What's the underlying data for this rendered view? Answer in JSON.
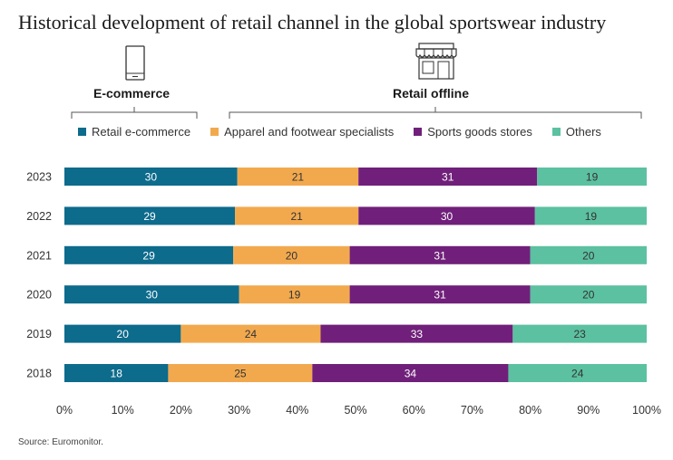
{
  "title": "Historical development of retail channel in the global sportswear industry",
  "groups": {
    "ecommerce": {
      "label": "E-commerce",
      "icon": "smartphone-icon"
    },
    "offline": {
      "label": "Retail offline",
      "icon": "storefront-icon"
    }
  },
  "source": "Source: Euromonitor.",
  "colors": {
    "retail_ecommerce": "#0d6b8c",
    "apparel_footwear": "#f2a94e",
    "sports_goods": "#70207a",
    "others": "#5cc1a0"
  },
  "chart_data": {
    "type": "bar",
    "orientation": "horizontal",
    "stacked": true,
    "percent_stacked": true,
    "title": "Historical development of retail channel in the global sportswear industry",
    "categories": [
      "2023",
      "2022",
      "2021",
      "2020",
      "2019",
      "2018"
    ],
    "series": [
      {
        "name": "Retail e-commerce",
        "color": "#0d6b8c",
        "values": [
          30,
          29,
          29,
          30,
          20,
          18
        ]
      },
      {
        "name": "Apparel and footwear specialists",
        "color": "#f2a94e",
        "values": [
          21,
          21,
          20,
          19,
          24,
          25
        ]
      },
      {
        "name": "Sports goods stores",
        "color": "#70207a",
        "values": [
          31,
          30,
          31,
          31,
          33,
          34
        ]
      },
      {
        "name": "Others",
        "color": "#5cc1a0",
        "values": [
          19,
          19,
          20,
          20,
          23,
          24
        ]
      }
    ],
    "x_ticks": [
      "0%",
      "10%",
      "20%",
      "30%",
      "40%",
      "50%",
      "60%",
      "70%",
      "80%",
      "90%",
      "100%"
    ],
    "xlim": [
      0,
      100
    ],
    "legend_position": "top",
    "grid": false
  }
}
